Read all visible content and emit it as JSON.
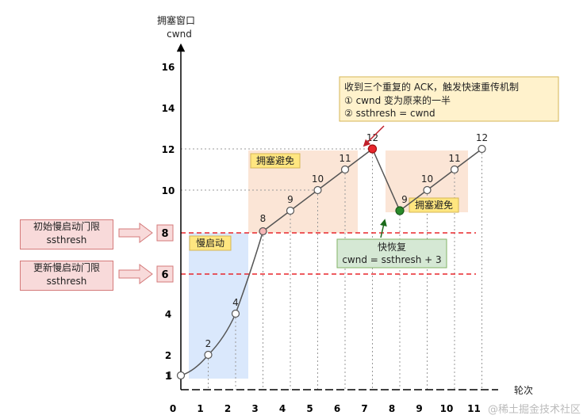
{
  "axes": {
    "y_title": "拥塞窗口",
    "y_subtitle": "cwnd",
    "x_title": "轮次",
    "y_ticks": [
      "1",
      "2",
      "4",
      "6",
      "8",
      "10",
      "12",
      "14",
      "16"
    ],
    "x_ticks": [
      "0",
      "1",
      "2",
      "3",
      "4",
      "5",
      "6",
      "7",
      "8",
      "9",
      "10",
      "11"
    ]
  },
  "chart_data": {
    "type": "line",
    "xlabel": "轮次",
    "ylabel": "拥塞窗口 cwnd",
    "xlim": [
      0,
      11
    ],
    "ylim": [
      0,
      16
    ],
    "series": [
      {
        "points": [
          [
            0,
            1
          ],
          [
            1,
            2
          ],
          [
            2,
            4
          ],
          [
            3,
            8
          ],
          [
            4,
            9
          ],
          [
            5,
            10
          ],
          [
            6,
            11
          ],
          [
            7,
            12
          ]
        ],
        "labels": [
          "1",
          "2",
          "4",
          "8",
          "9",
          "10",
          "11",
          "12"
        ]
      },
      {
        "points": [
          [
            7,
            12
          ],
          [
            8,
            9
          ]
        ]
      },
      {
        "points": [
          [
            8,
            9
          ],
          [
            9,
            10
          ],
          [
            10,
            11
          ],
          [
            11,
            12
          ]
        ],
        "labels": [
          "9",
          "10",
          "11",
          "12"
        ]
      }
    ],
    "thresholds": [
      8,
      6
    ]
  },
  "regions": {
    "slow_start": "慢启动",
    "congestion_avoidance_1": "拥塞避免",
    "congestion_avoidance_2": "拥塞避免"
  },
  "annotations": {
    "ack_title": "收到三个重复的 ACK，触发快速重传机制",
    "ack_line1": "① cwnd 变为原来的一半",
    "ack_line2": "② ssthresh = cwnd",
    "fast_recovery_title": "快恢复",
    "fast_recovery_formula": "cwnd = ssthresh + 3",
    "initial_threshold_line1": "初始慢启动门限",
    "initial_threshold_line2": "ssthresh",
    "updated_threshold_line1": "更新慢启动门限",
    "updated_threshold_line2": "ssthresh",
    "threshold_8": "8",
    "threshold_6": "6"
  },
  "colors": {
    "slow_start_fill": "#dae8fc",
    "avoid_fill": "#fbe5d6",
    "threshold_line": "#e8262c",
    "loss_point": "#e8262c",
    "recovery_point": "#2a8a2a",
    "ack_box": "#fff2cc",
    "recovery_box": "#d5e8d4",
    "side_note": "#f8dada"
  },
  "watermark": "@稀土掘金技术社区"
}
